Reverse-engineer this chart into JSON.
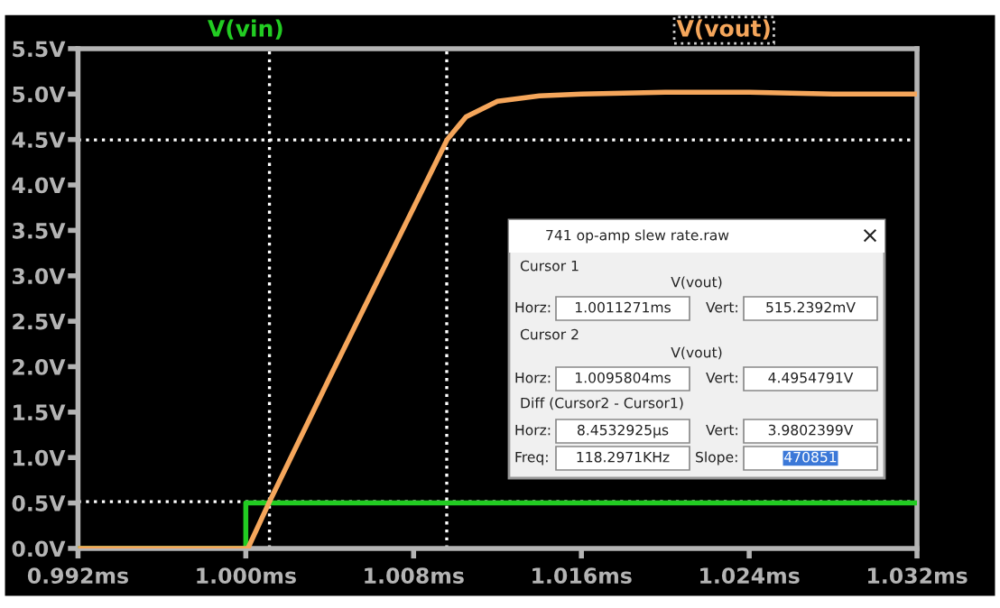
{
  "chart_data": {
    "type": "line",
    "series": [
      {
        "name": "V(vin)",
        "color": "#22cc22",
        "x": [
          0.992,
          1.0,
          1.0,
          1.032
        ],
        "values": [
          0,
          0,
          0.5,
          0.5
        ]
      },
      {
        "name": "V(vout)",
        "color": "#f5a65b",
        "x": [
          0.992,
          1.0,
          1.0001,
          1.0011,
          1.004,
          1.008,
          1.0096,
          1.0105,
          1.012,
          1.014,
          1.016,
          1.02,
          1.024,
          1.028,
          1.032
        ],
        "values": [
          0,
          0,
          0,
          0.5,
          1.88,
          3.75,
          4.5,
          4.75,
          4.92,
          4.98,
          5.0,
          5.02,
          5.02,
          5.0,
          5.0
        ]
      }
    ],
    "xlim": [
      0.992,
      1.032
    ],
    "xticks": [
      {
        "value": 0.992,
        "label": "0.992ms"
      },
      {
        "value": 1.0,
        "label": "1.000ms"
      },
      {
        "value": 1.008,
        "label": "1.008ms"
      },
      {
        "value": 1.016,
        "label": "1.016ms"
      },
      {
        "value": 1.024,
        "label": "1.024ms"
      },
      {
        "value": 1.032,
        "label": "1.032ms"
      }
    ],
    "ylim": [
      0,
      5.5
    ],
    "yticks": [
      {
        "value": 0,
        "label": "0.0V"
      },
      {
        "value": 0.5,
        "label": "0.5V"
      },
      {
        "value": 1,
        "label": "1.0V"
      },
      {
        "value": 1.5,
        "label": "1.5V"
      },
      {
        "value": 2,
        "label": "2.0V"
      },
      {
        "value": 2.5,
        "label": "2.5V"
      },
      {
        "value": 3,
        "label": "3.0V"
      },
      {
        "value": 3.5,
        "label": "3.5V"
      },
      {
        "value": 4,
        "label": "4.0V"
      },
      {
        "value": 4.5,
        "label": "4.5V"
      },
      {
        "value": 5,
        "label": "5.0V"
      },
      {
        "value": 5.5,
        "label": "5.5V"
      }
    ],
    "grid": false,
    "line_style": "solid",
    "marker": "none",
    "ref_lines": [
      {
        "axis": "x",
        "value": 1.0011271,
        "color": "#ffffff",
        "line_style": "dotted"
      },
      {
        "axis": "x",
        "value": 1.0095804,
        "color": "#ffffff",
        "line_style": "dotted"
      },
      {
        "axis": "y",
        "value": 0.5152392,
        "color": "#ffffff",
        "line_style": "dotted"
      },
      {
        "axis": "y",
        "value": 4.4954791,
        "color": "#ffffff",
        "line_style": "dotted"
      }
    ],
    "annotations": [
      "741 op-amp slew rate.raw",
      "Cursor 1",
      "V(vout)",
      "Horz:",
      "1.0011271ms",
      "Vert:",
      "515.2392mV",
      "Cursor 2",
      "V(vout)",
      "Horz:",
      "1.0095804ms",
      "Vert:",
      "4.4954791V",
      "Diff (Cursor2 - Cursor1)",
      "Horz:",
      "8.4532925µs",
      "Vert:",
      "3.9802399V",
      "Freq:",
      "118.2971KHz",
      "Slope:",
      "470851",
      "×"
    ]
  }
}
